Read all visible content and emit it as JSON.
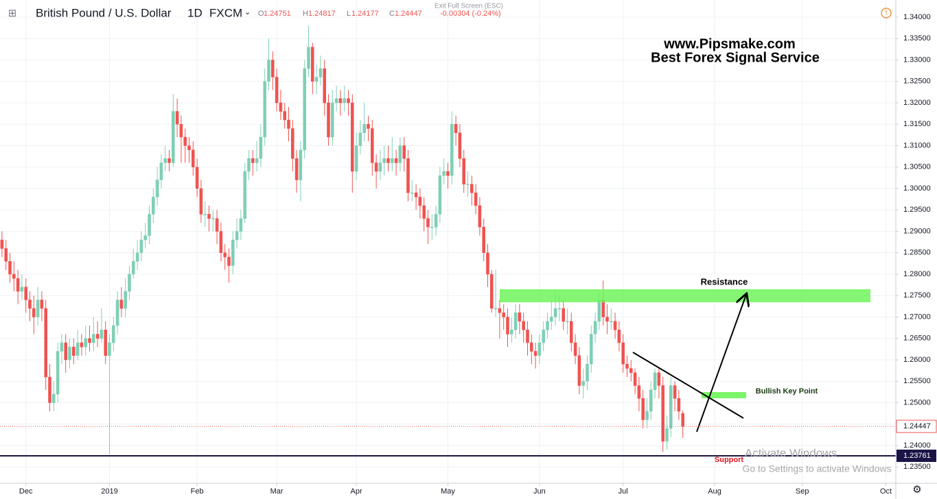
{
  "chart_data": {
    "type": "candlestick",
    "title": "British Pound / U.S. Dollar",
    "interval": "1D",
    "source": "FXCM",
    "ohlc_labels": [
      "O",
      "H",
      "L",
      "C"
    ],
    "change": "-0.00304 (-0.24%)",
    "open": [
      1.288,
      1.286,
      1.283,
      1.28,
      1.279,
      1.276,
      1.277,
      1.274,
      1.272,
      1.27,
      1.274,
      1.272,
      1.256,
      1.25,
      1.252,
      1.262,
      1.264,
      1.26,
      1.263,
      1.261,
      1.264,
      1.263,
      1.265,
      1.264,
      1.266,
      1.265,
      1.267,
      1.261,
      1.264,
      1.268,
      1.274,
      1.272,
      1.276,
      1.28,
      1.283,
      1.285,
      1.288,
      1.289,
      1.294,
      1.298,
      1.302,
      1.306,
      1.307,
      1.306,
      1.318,
      1.315,
      1.312,
      1.31,
      1.309,
      1.305,
      1.3,
      1.294,
      1.294,
      1.293,
      1.293,
      1.29,
      1.285,
      1.284,
      1.282,
      1.288,
      1.29,
      1.293,
      1.304,
      1.307,
      1.306,
      1.307,
      1.312,
      1.325,
      1.33,
      1.326,
      1.32,
      1.318,
      1.316,
      1.314,
      1.307,
      1.302,
      1.309,
      1.328,
      1.333,
      1.325,
      1.326,
      1.328,
      1.32,
      1.312,
      1.32,
      1.321,
      1.32,
      1.321,
      1.32,
      1.304,
      1.31,
      1.313,
      1.315,
      1.314,
      1.306,
      1.304,
      1.306,
      1.307,
      1.306,
      1.307,
      1.306,
      1.31,
      1.307,
      1.299,
      1.299,
      1.298,
      1.296,
      1.293,
      1.291,
      1.291,
      1.294,
      1.303,
      1.304,
      1.303,
      1.315,
      1.313,
      1.307,
      1.301,
      1.301,
      1.299,
      1.296,
      1.291,
      1.285,
      1.28,
      1.272,
      1.272,
      1.271,
      1.27,
      1.266,
      1.267,
      1.271,
      1.269,
      1.267,
      1.264,
      1.262,
      1.261,
      1.264,
      1.267,
      1.269,
      1.27,
      1.272,
      1.272,
      1.269,
      1.269,
      1.264,
      1.261,
      1.254,
      1.255,
      1.259,
      1.266,
      1.269,
      1.274,
      1.27,
      1.269,
      1.269,
      1.267,
      1.264,
      1.259,
      1.258,
      1.257,
      1.254,
      1.251,
      1.246,
      1.248,
      1.253,
      1.257,
      1.254,
      1.241,
      1.244,
      1.254,
      1.251,
      1.24751
    ],
    "high": [
      1.29,
      1.288,
      1.285,
      1.283,
      1.281,
      1.28,
      1.279,
      1.276,
      1.275,
      1.277,
      1.276,
      1.274,
      1.259,
      1.255,
      1.264,
      1.266,
      1.266,
      1.265,
      1.265,
      1.267,
      1.266,
      1.268,
      1.268,
      1.27,
      1.269,
      1.272,
      1.269,
      1.266,
      1.27,
      1.276,
      1.277,
      1.279,
      1.282,
      1.286,
      1.288,
      1.29,
      1.292,
      1.296,
      1.3,
      1.305,
      1.308,
      1.31,
      1.309,
      1.322,
      1.321,
      1.317,
      1.314,
      1.312,
      1.311,
      1.307,
      1.302,
      1.297,
      1.296,
      1.295,
      1.295,
      1.292,
      1.287,
      1.286,
      1.29,
      1.293,
      1.295,
      1.306,
      1.309,
      1.309,
      1.311,
      1.315,
      1.328,
      1.335,
      1.332,
      1.328,
      1.323,
      1.32,
      1.319,
      1.316,
      1.309,
      1.311,
      1.33,
      1.338,
      1.334,
      1.329,
      1.331,
      1.33,
      1.322,
      1.323,
      1.324,
      1.323,
      1.324,
      1.323,
      1.322,
      1.313,
      1.316,
      1.32,
      1.317,
      1.316,
      1.308,
      1.309,
      1.31,
      1.31,
      1.312,
      1.309,
      1.312,
      1.312,
      1.309,
      1.302,
      1.301,
      1.3,
      1.298,
      1.295,
      1.294,
      1.296,
      1.305,
      1.307,
      1.306,
      1.318,
      1.317,
      1.315,
      1.309,
      1.304,
      1.303,
      1.301,
      1.298,
      1.293,
      1.287,
      1.281,
      1.281,
      1.274,
      1.273,
      1.272,
      1.27,
      1.273,
      1.273,
      1.271,
      1.269,
      1.266,
      1.264,
      1.266,
      1.269,
      1.271,
      1.274,
      1.276,
      1.275,
      1.274,
      1.272,
      1.271,
      1.266,
      1.263,
      1.258,
      1.261,
      1.268,
      1.271,
      1.276,
      1.2785,
      1.273,
      1.272,
      1.271,
      1.269,
      1.266,
      1.261,
      1.26,
      1.258,
      1.256,
      1.253,
      1.251,
      1.255,
      1.258,
      1.258,
      1.256,
      1.247,
      1.256,
      1.255,
      1.253,
      1.24817
    ],
    "low": [
      1.284,
      1.281,
      1.278,
      1.276,
      1.273,
      1.274,
      1.271,
      1.269,
      1.266,
      1.268,
      1.269,
      1.253,
      1.248,
      1.248,
      1.25,
      1.259,
      1.257,
      1.258,
      1.259,
      1.26,
      1.261,
      1.261,
      1.262,
      1.262,
      1.263,
      1.264,
      1.259,
      1.238,
      1.262,
      1.266,
      1.27,
      1.27,
      1.274,
      1.279,
      1.281,
      1.283,
      1.286,
      1.287,
      1.292,
      1.296,
      1.3,
      1.304,
      1.304,
      1.305,
      1.312,
      1.306,
      1.306,
      1.306,
      1.303,
      1.298,
      1.292,
      1.291,
      1.29,
      1.29,
      1.287,
      1.283,
      1.281,
      1.278,
      1.28,
      1.286,
      1.288,
      1.292,
      1.302,
      1.303,
      1.304,
      1.305,
      1.31,
      1.323,
      1.323,
      1.318,
      1.316,
      1.314,
      1.311,
      1.304,
      1.299,
      1.297,
      1.307,
      1.326,
      1.322,
      1.322,
      1.324,
      1.317,
      1.31,
      1.31,
      1.318,
      1.317,
      1.318,
      1.317,
      1.299,
      1.302,
      1.308,
      1.311,
      1.311,
      1.303,
      1.3,
      1.302,
      1.303,
      1.304,
      1.304,
      1.303,
      1.304,
      1.304,
      1.297,
      1.297,
      1.295,
      1.293,
      1.29,
      1.287,
      1.288,
      1.289,
      1.292,
      1.301,
      1.3,
      1.301,
      1.31,
      1.305,
      1.299,
      1.298,
      1.296,
      1.294,
      1.289,
      1.283,
      1.277,
      1.271,
      1.27,
      1.265,
      1.267,
      1.263,
      1.264,
      1.265,
      1.266,
      1.264,
      1.261,
      1.259,
      1.258,
      1.259,
      1.262,
      1.265,
      1.267,
      1.268,
      1.269,
      1.267,
      1.266,
      1.262,
      1.259,
      1.252,
      1.251,
      1.253,
      1.257,
      1.264,
      1.267,
      1.268,
      1.266,
      1.267,
      1.265,
      1.262,
      1.257,
      1.256,
      1.255,
      1.252,
      1.248,
      1.244,
      1.244,
      1.246,
      1.251,
      1.251,
      1.2385,
      1.239,
      1.242,
      1.248,
      1.246,
      1.24177
    ],
    "close": [
      1.286,
      1.283,
      1.28,
      1.279,
      1.276,
      1.277,
      1.274,
      1.272,
      1.27,
      1.274,
      1.272,
      1.256,
      1.25,
      1.252,
      1.262,
      1.264,
      1.26,
      1.263,
      1.261,
      1.264,
      1.263,
      1.265,
      1.264,
      1.266,
      1.265,
      1.267,
      1.261,
      1.264,
      1.268,
      1.274,
      1.272,
      1.276,
      1.28,
      1.283,
      1.285,
      1.288,
      1.289,
      1.294,
      1.298,
      1.302,
      1.306,
      1.307,
      1.306,
      1.318,
      1.315,
      1.312,
      1.31,
      1.309,
      1.305,
      1.3,
      1.294,
      1.294,
      1.293,
      1.293,
      1.29,
      1.285,
      1.284,
      1.282,
      1.288,
      1.29,
      1.293,
      1.304,
      1.307,
      1.306,
      1.307,
      1.312,
      1.325,
      1.33,
      1.326,
      1.32,
      1.318,
      1.316,
      1.314,
      1.307,
      1.302,
      1.309,
      1.328,
      1.333,
      1.325,
      1.326,
      1.328,
      1.32,
      1.312,
      1.32,
      1.321,
      1.32,
      1.321,
      1.32,
      1.304,
      1.31,
      1.313,
      1.315,
      1.314,
      1.306,
      1.304,
      1.306,
      1.307,
      1.306,
      1.307,
      1.306,
      1.31,
      1.307,
      1.299,
      1.299,
      1.298,
      1.296,
      1.293,
      1.291,
      1.291,
      1.294,
      1.303,
      1.304,
      1.303,
      1.315,
      1.313,
      1.307,
      1.301,
      1.301,
      1.299,
      1.296,
      1.291,
      1.285,
      1.28,
      1.272,
      1.272,
      1.271,
      1.27,
      1.266,
      1.267,
      1.271,
      1.269,
      1.267,
      1.264,
      1.262,
      1.261,
      1.264,
      1.267,
      1.269,
      1.27,
      1.272,
      1.272,
      1.269,
      1.269,
      1.264,
      1.261,
      1.254,
      1.255,
      1.259,
      1.266,
      1.269,
      1.274,
      1.27,
      1.269,
      1.269,
      1.267,
      1.264,
      1.259,
      1.258,
      1.257,
      1.254,
      1.251,
      1.246,
      1.248,
      1.253,
      1.257,
      1.254,
      1.241,
      1.244,
      1.254,
      1.251,
      1.248,
      1.24447
    ],
    "up_color": "#7fcfb5",
    "down_color": "#ef5350",
    "xlim": [
      -0.5,
      224.5
    ],
    "xticks": [
      {
        "value": 6,
        "label": "Dec"
      },
      {
        "value": 27,
        "label": "2019"
      },
      {
        "value": 49,
        "label": "Feb"
      },
      {
        "value": 69,
        "label": "Mar"
      },
      {
        "value": 89,
        "label": "Apr"
      },
      {
        "value": 112,
        "label": "May"
      },
      {
        "value": 135,
        "label": "Jun"
      },
      {
        "value": 156,
        "label": "Jul"
      },
      {
        "value": 179,
        "label": "Aug"
      },
      {
        "value": 201,
        "label": "Sep"
      },
      {
        "value": 222,
        "label": "Oct"
      }
    ],
    "ylim": [
      1.2312,
      1.344
    ],
    "yticks": [
      {
        "value": 1.235,
        "label": "1.23500"
      },
      {
        "value": 1.24,
        "label": "1.24000"
      },
      {
        "value": 1.245,
        "label": "1.24500"
      },
      {
        "value": 1.25,
        "label": "1.25000"
      },
      {
        "value": 1.255,
        "label": "1.25500"
      },
      {
        "value": 1.26,
        "label": "1.26000"
      },
      {
        "value": 1.265,
        "label": "1.26500"
      },
      {
        "value": 1.27,
        "label": "1.27000"
      },
      {
        "value": 1.275,
        "label": "1.27500"
      },
      {
        "value": 1.28,
        "label": "1.28000"
      },
      {
        "value": 1.285,
        "label": "1.28500"
      },
      {
        "value": 1.29,
        "label": "1.29000"
      },
      {
        "value": 1.295,
        "label": "1.29500"
      },
      {
        "value": 1.3,
        "label": "1.30000"
      },
      {
        "value": 1.305,
        "label": "1.30500"
      },
      {
        "value": 1.31,
        "label": "1.31000"
      },
      {
        "value": 1.315,
        "label": "1.31500"
      },
      {
        "value": 1.32,
        "label": "1.32000"
      },
      {
        "value": 1.325,
        "label": "1.32500"
      },
      {
        "value": 1.33,
        "label": "1.33000"
      },
      {
        "value": 1.335,
        "label": "1.33500"
      },
      {
        "value": 1.34,
        "label": "1.34000"
      }
    ],
    "grid": true,
    "support": 1.23761,
    "annotations": {
      "site": "www.Pipsmake.com",
      "slogan": "Best Forex Signal Service",
      "resistance": "Resistance",
      "key_point": "Bullish Key Point",
      "support": "Support"
    }
  },
  "ui": {
    "exit_full_screen": "Exit Full Screen (ESC)",
    "watermark_title": "Activate Windows",
    "watermark_text": "Go to Settings to activate Windows"
  }
}
